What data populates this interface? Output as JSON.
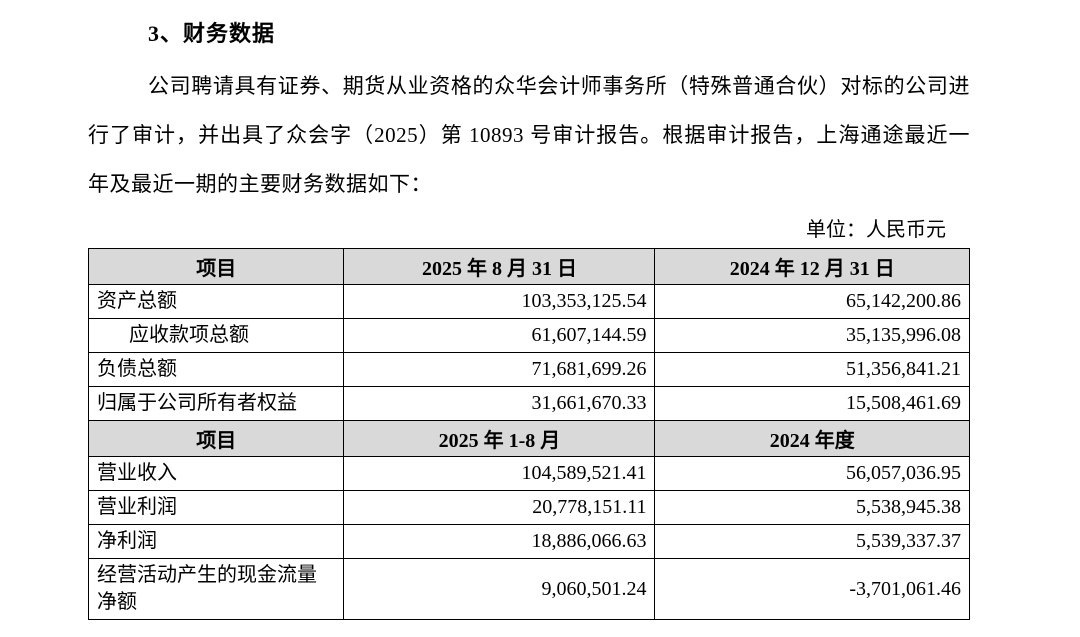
{
  "page": {
    "title": "3、财务数据",
    "paragraph": "公司聘请具有证券、期货从业资格的众华会计师事务所（特殊普通合伙）对标的公司进行了审计，并出具了众会字（2025）第 10893 号审计报告。根据审计报告，上海通途最近一年及最近一期的主要财务数据如下：",
    "unit_label": "单位：人民币元"
  },
  "table": {
    "section1": {
      "header": {
        "col0": "项目",
        "col1": "2025 年 8 月 31 日",
        "col2": "2024 年 12 月 31 日"
      },
      "rows": [
        {
          "label": "资产总额",
          "v1": "103,353,125.54",
          "v2": "65,142,200.86"
        },
        {
          "label": "应收款项总额",
          "v1": "61,607,144.59",
          "v2": "35,135,996.08"
        },
        {
          "label": "负债总额",
          "v1": "71,681,699.26",
          "v2": "51,356,841.21"
        },
        {
          "label": "归属于公司所有者权益",
          "v1": "31,661,670.33",
          "v2": "15,508,461.69"
        }
      ]
    },
    "section2": {
      "header": {
        "col0": "项目",
        "col1": "2025 年 1-8 月",
        "col2": "2024 年度"
      },
      "rows": [
        {
          "label": "营业收入",
          "v1": "104,589,521.41",
          "v2": "56,057,036.95"
        },
        {
          "label": "营业利润",
          "v1": "20,778,151.11",
          "v2": "5,538,945.38"
        },
        {
          "label": "净利润",
          "v1": "18,886,066.63",
          "v2": "5,539,337.37"
        },
        {
          "label": "经营活动产生的现金流量净额",
          "v1": "9,060,501.24",
          "v2": "-3,701,061.46"
        }
      ]
    }
  },
  "colors": {
    "header_bg": "#d9d9d9",
    "border": "#000000",
    "text": "#000000",
    "background": "#ffffff"
  }
}
